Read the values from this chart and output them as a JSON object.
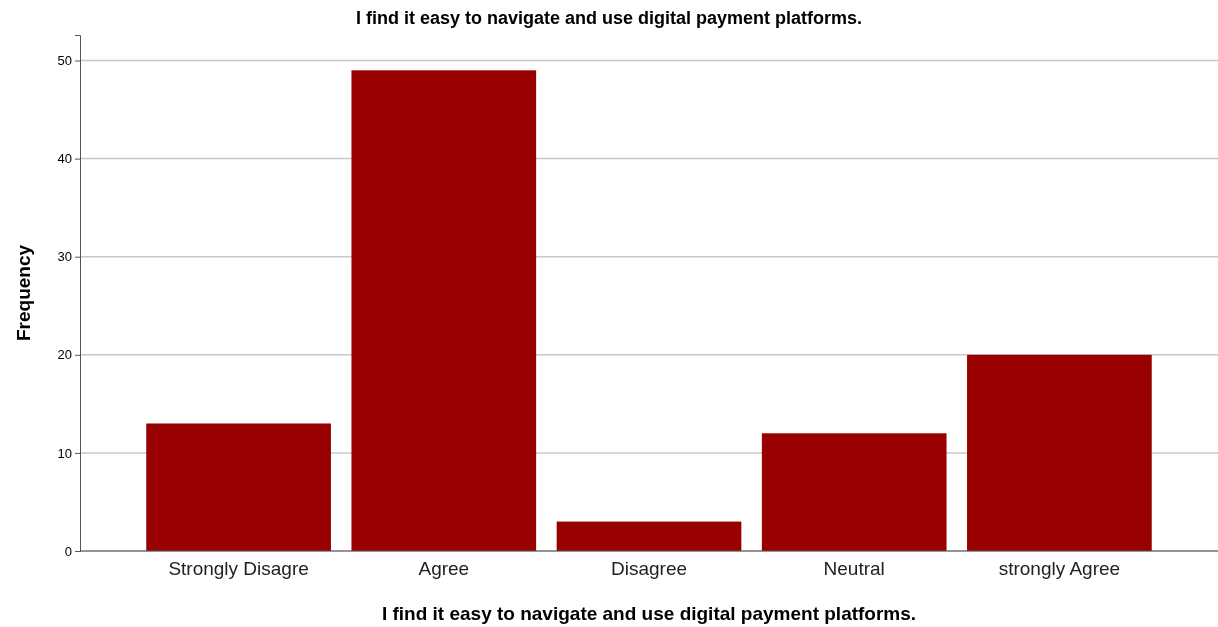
{
  "chart_data": {
    "type": "bar",
    "title": "I find it easy to navigate and use digital payment platforms.",
    "xlabel": "I find it easy to navigate and use digital payment platforms.",
    "ylabel": "Frequency",
    "categories": [
      "Strongly Disagre",
      "Agree",
      "Disagree",
      "Neutral",
      "strongly Agree"
    ],
    "values": [
      13,
      49,
      3,
      12,
      20
    ],
    "color": "#990000",
    "ylim": [
      0,
      52.6
    ],
    "yticks": [
      0,
      10,
      20,
      30,
      40,
      50
    ],
    "grid": "y"
  }
}
